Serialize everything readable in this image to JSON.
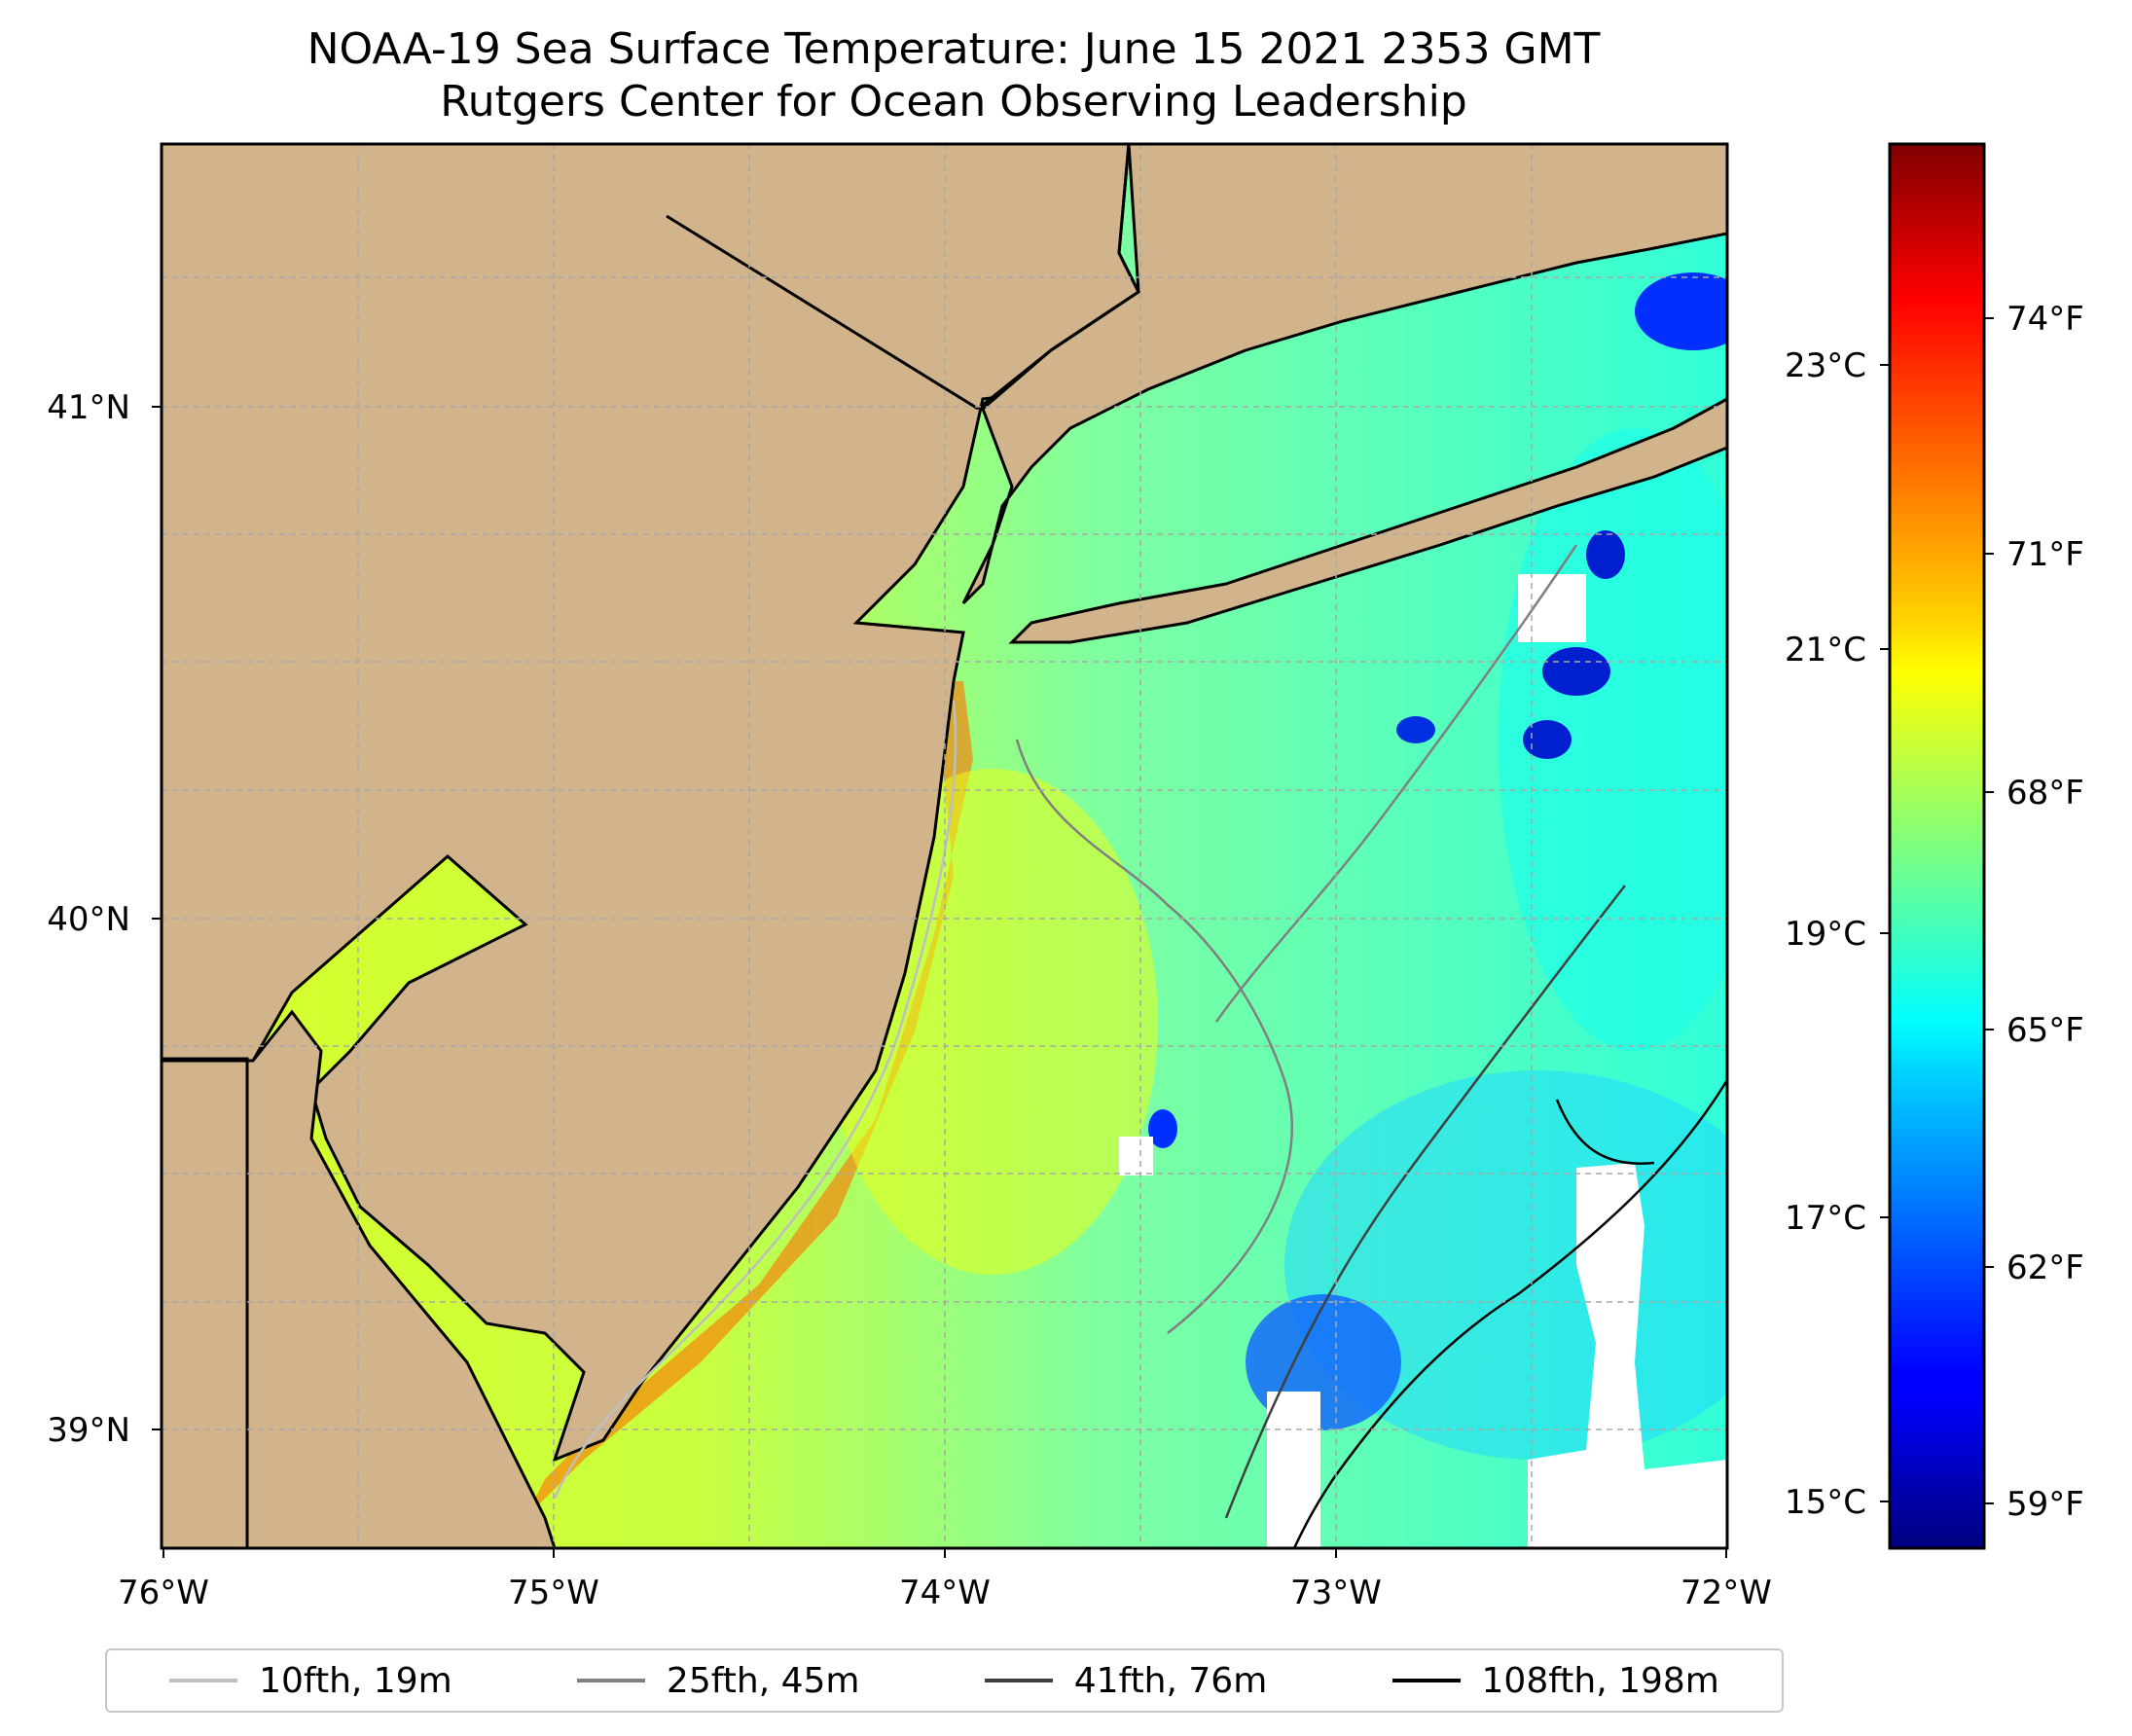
{
  "title": {
    "line1": "NOAA-19 Sea Surface Temperature: June 15 2021 2353 GMT",
    "line2": "Rutgers Center for Ocean Observing Leadership"
  },
  "axes": {
    "x_ticks": [
      "76°W",
      "75°W",
      "74°W",
      "73°W",
      "72°W"
    ],
    "y_ticks": [
      "41°N",
      "40°N",
      "39°N"
    ],
    "xlim": [
      -76,
      -72
    ],
    "ylim": [
      38.73,
      41.52
    ],
    "grid": true
  },
  "colorbar": {
    "celsius_ticks": [
      "23°C",
      "21°C",
      "19°C",
      "17°C",
      "15°C"
    ],
    "fahrenheit_ticks": [
      "74°F",
      "71°F",
      "68°F",
      "65°F",
      "62°F",
      "59°F"
    ],
    "colormap": "jet",
    "range_f": [
      57.7,
      76.4
    ]
  },
  "legend": {
    "items": [
      {
        "label": "10fth, 19m",
        "color": "#bfbfbf"
      },
      {
        "label": "25fth, 45m",
        "color": "#808080"
      },
      {
        "label": "41fth, 76m",
        "color": "#404040"
      },
      {
        "label": "108fth, 198m",
        "color": "#000000"
      }
    ]
  },
  "colors": {
    "land": "#d2b48c",
    "no_data": "#ffffff",
    "gridline": "#a8a8a8"
  }
}
